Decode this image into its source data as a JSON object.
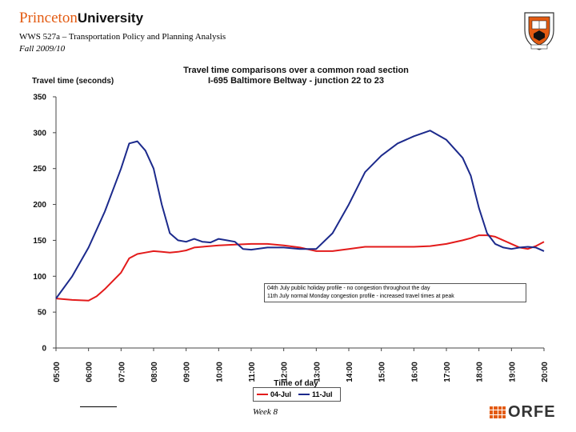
{
  "header": {
    "logo_princeton": "Princeton",
    "logo_university": "University",
    "course": "WWS 527a – Transportation Policy and Planning Analysis",
    "term": "Fall 2009/10",
    "shield_icon": "princeton-shield-icon"
  },
  "footer": {
    "week": "Week 8",
    "orfe_text": "ORFE",
    "orfe_icon": "orfe-grid-icon"
  },
  "colors": {
    "series_04jul": "#e31b1b",
    "series_11jul": "#1c2a8c",
    "brand_orange": "#e35b12"
  },
  "chart_data": {
    "type": "line",
    "title": [
      "Travel time comparisons over a common road section",
      "I-695 Baltimore Beltway - junction 22 to 23"
    ],
    "ylabel": "Travel time (seconds)",
    "xlabel": "Time of day",
    "ylim": [
      0,
      350
    ],
    "yticks": [
      "0",
      "50",
      "100",
      "150",
      "200",
      "250",
      "300",
      "350"
    ],
    "xticks": [
      "05:00",
      "06:00",
      "07:00",
      "08:00",
      "09:00",
      "10:00",
      "11:00",
      "12:00",
      "13:00",
      "14:00",
      "15:00",
      "16:00",
      "17:00",
      "18:00",
      "19:00",
      "20:00"
    ],
    "xrange_hours": [
      5,
      20
    ],
    "grid": "none",
    "legend_position": "bottom",
    "annotation": [
      "04th July public holiday profile - no congestion throughout the day",
      "11th July normal Monday congestion profile - increased travel times at peak"
    ],
    "series": [
      {
        "name": "04-Jul",
        "x": [
          5.0,
          5.5,
          6.0,
          6.25,
          6.5,
          7.0,
          7.25,
          7.5,
          7.75,
          8.0,
          8.25,
          8.5,
          8.75,
          9.0,
          9.25,
          9.5,
          10.0,
          10.5,
          11.0,
          11.5,
          12.0,
          12.5,
          13.0,
          13.5,
          14.0,
          14.5,
          15.0,
          15.5,
          16.0,
          16.5,
          17.0,
          17.5,
          17.75,
          18.0,
          18.25,
          18.5,
          18.75,
          19.0,
          19.25,
          19.5,
          19.75,
          20.0
        ],
        "y": [
          69,
          67,
          66,
          72,
          82,
          105,
          125,
          131,
          133,
          135,
          134,
          133,
          134,
          136,
          140,
          141,
          143,
          144,
          145,
          145,
          143,
          140,
          135,
          135,
          138,
          141,
          141,
          141,
          141,
          142,
          145,
          150,
          153,
          157,
          157,
          155,
          150,
          145,
          140,
          138,
          142,
          148
        ]
      },
      {
        "name": "11-Jul",
        "x": [
          5.0,
          5.5,
          6.0,
          6.5,
          7.0,
          7.25,
          7.5,
          7.75,
          8.0,
          8.25,
          8.5,
          8.75,
          9.0,
          9.25,
          9.5,
          9.75,
          10.0,
          10.25,
          10.5,
          10.75,
          11.0,
          11.5,
          12.0,
          12.5,
          13.0,
          13.5,
          14.0,
          14.5,
          15.0,
          15.5,
          16.0,
          16.5,
          17.0,
          17.5,
          17.75,
          18.0,
          18.25,
          18.5,
          18.75,
          19.0,
          19.25,
          19.5,
          19.75,
          20.0
        ],
        "y": [
          69,
          100,
          140,
          190,
          250,
          285,
          288,
          275,
          250,
          200,
          160,
          150,
          148,
          152,
          148,
          147,
          152,
          150,
          148,
          138,
          137,
          140,
          140,
          138,
          138,
          160,
          200,
          245,
          268,
          285,
          295,
          303,
          290,
          265,
          240,
          195,
          160,
          145,
          140,
          138,
          140,
          141,
          140,
          135
        ]
      }
    ]
  }
}
